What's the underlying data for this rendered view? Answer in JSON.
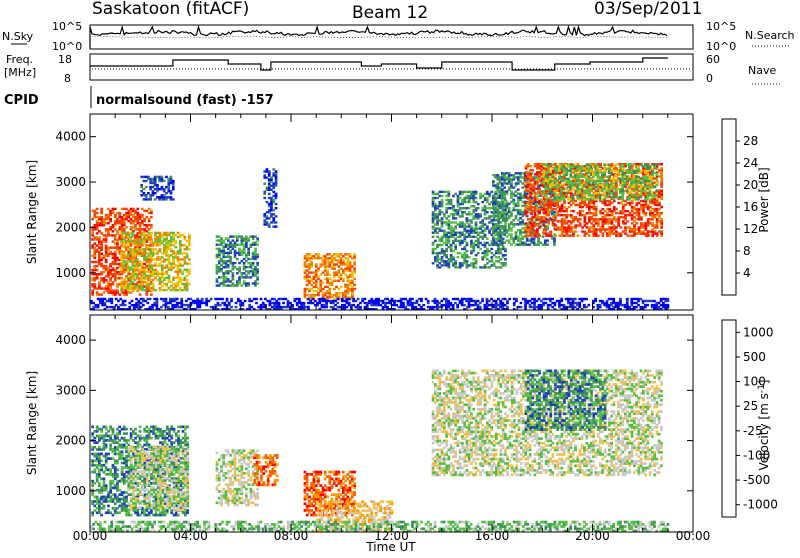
{
  "header": {
    "station": "Saskatoon (fitACF)",
    "beam": "Beam 12",
    "date": "03/Sep/2011"
  },
  "noise_panel": {
    "left_label": "N.Sky",
    "right_label": "N.Search",
    "left_ticks": [
      "10^5",
      "10^0"
    ],
    "right_ticks": [
      "10^5",
      "10^0"
    ]
  },
  "freq_panel": {
    "left_label_line1": "Freq.",
    "left_label_line2": "[MHz]",
    "right_label": "Nave",
    "left_ticks": [
      "18",
      "8"
    ],
    "right_ticks": [
      "60",
      "0"
    ]
  },
  "cpid": {
    "label": "CPID",
    "text": "normalsound (fast) -157"
  },
  "colors": {
    "power": [
      "#0000ff",
      "#1f3fbf",
      "#3f8f5f",
      "#55c040",
      "#f0c000",
      "#f08000",
      "#ff4000",
      "#ff0000"
    ],
    "velocity": [
      "#ff0000",
      "#ff6000",
      "#ff9900",
      "#f0c050",
      "#c8c8c8",
      "#55c040",
      "#3f8f5f",
      "#1f3fbf"
    ]
  },
  "chart_data": [
    {
      "type": "heatmap",
      "quantity": "Power",
      "ylabel": "Slant Range [km]",
      "ylim": [
        180,
        4500
      ],
      "xlim": [
        "00:00",
        "24:00"
      ],
      "yticks": [
        1000,
        2000,
        3000,
        4000
      ],
      "colorbar_label": "Power [dB]",
      "colorbar_ticks": [
        "4",
        "8",
        "12",
        "16",
        "20",
        "24",
        "28"
      ],
      "regions": [
        {
          "t": [
            0.05,
            2.4
          ],
          "r": [
            500,
            2400
          ],
          "level": 6
        },
        {
          "t": [
            1.2,
            3.9
          ],
          "r": [
            600,
            1900
          ],
          "level": 4
        },
        {
          "t": [
            2.0,
            3.3
          ],
          "r": [
            2600,
            3100
          ],
          "level": 1
        },
        {
          "t": [
            5.0,
            6.7
          ],
          "r": [
            700,
            1800
          ],
          "level": 2
        },
        {
          "t": [
            6.9,
            7.4
          ],
          "r": [
            2000,
            3300
          ],
          "level": 1
        },
        {
          "t": [
            8.5,
            10.5
          ],
          "r": [
            400,
            1400
          ],
          "level": 5
        },
        {
          "t": [
            13.6,
            16.5
          ],
          "r": [
            1100,
            2800
          ],
          "level": 2
        },
        {
          "t": [
            16.0,
            18.5
          ],
          "r": [
            1600,
            3200
          ],
          "level": 2
        },
        {
          "t": [
            17.3,
            22.7
          ],
          "r": [
            1800,
            3400
          ],
          "level": 6
        },
        {
          "t": [
            18.0,
            22.5
          ],
          "r": [
            2600,
            3400
          ],
          "level": 3
        },
        {
          "t": [
            0.0,
            23.0
          ],
          "r": [
            180,
            450
          ],
          "level": 0
        }
      ]
    },
    {
      "type": "heatmap",
      "quantity": "Velocity",
      "ylabel": "Slant Range [km]",
      "xlabel": "Time UT",
      "ylim": [
        180,
        4500
      ],
      "xlim": [
        "00:00",
        "24:00"
      ],
      "yticks": [
        1000,
        2000,
        3000,
        4000
      ],
      "xticks": [
        "00:00",
        "04:00",
        "08:00",
        "12:00",
        "16:00",
        "20:00",
        "00:00"
      ],
      "colorbar_label": "Velocity [m s^-1]",
      "colorbar_ticks": [
        "1000",
        "500",
        "100",
        "25",
        "-25",
        "-100",
        "-500",
        "-1000"
      ],
      "regions": [
        {
          "t": [
            0.05,
            3.9
          ],
          "r": [
            500,
            2300
          ],
          "level": 6
        },
        {
          "t": [
            1.5,
            3.9
          ],
          "r": [
            600,
            1900
          ],
          "level": 4
        },
        {
          "t": [
            5.0,
            6.7
          ],
          "r": [
            700,
            1800
          ],
          "level": 4
        },
        {
          "t": [
            6.5,
            7.4
          ],
          "r": [
            1100,
            1700
          ],
          "level": 1
        },
        {
          "t": [
            8.5,
            10.5
          ],
          "r": [
            500,
            1400
          ],
          "level": 1
        },
        {
          "t": [
            9.0,
            12.0
          ],
          "r": [
            180,
            800
          ],
          "level": 3
        },
        {
          "t": [
            13.6,
            22.7
          ],
          "r": [
            1300,
            3400
          ],
          "level": 4
        },
        {
          "t": [
            17.3,
            20.5
          ],
          "r": [
            2200,
            3400
          ],
          "level": 6
        },
        {
          "t": [
            0.0,
            23.0
          ],
          "r": [
            180,
            400
          ],
          "level": 5
        }
      ]
    }
  ]
}
